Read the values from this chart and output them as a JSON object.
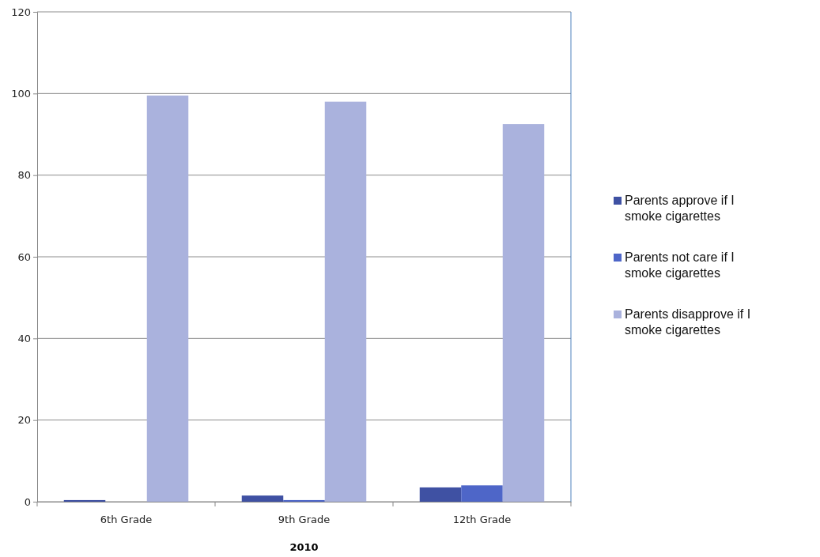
{
  "chart_data": {
    "type": "bar",
    "xlabel": "2010",
    "categories": [
      "6th Grade",
      "9th Grade",
      "12th Grade"
    ],
    "series": [
      {
        "name": "Parents approve if I smoke cigarettes",
        "color": "#3f51a3",
        "values": [
          0.4,
          1.5,
          3.5
        ]
      },
      {
        "name": "Parents not care if I smoke cigarettes",
        "color": "#4e66c8",
        "values": [
          0,
          0.4,
          4
        ]
      },
      {
        "name": "Parents disapprove if I smoke cigarettes",
        "color": "#aab2dd",
        "values": [
          99.5,
          98,
          92.5
        ]
      }
    ],
    "ylim": [
      0,
      120
    ],
    "yticks": [
      0,
      20,
      40,
      60,
      80,
      100,
      120
    ],
    "grid": "y",
    "legend": "right"
  }
}
